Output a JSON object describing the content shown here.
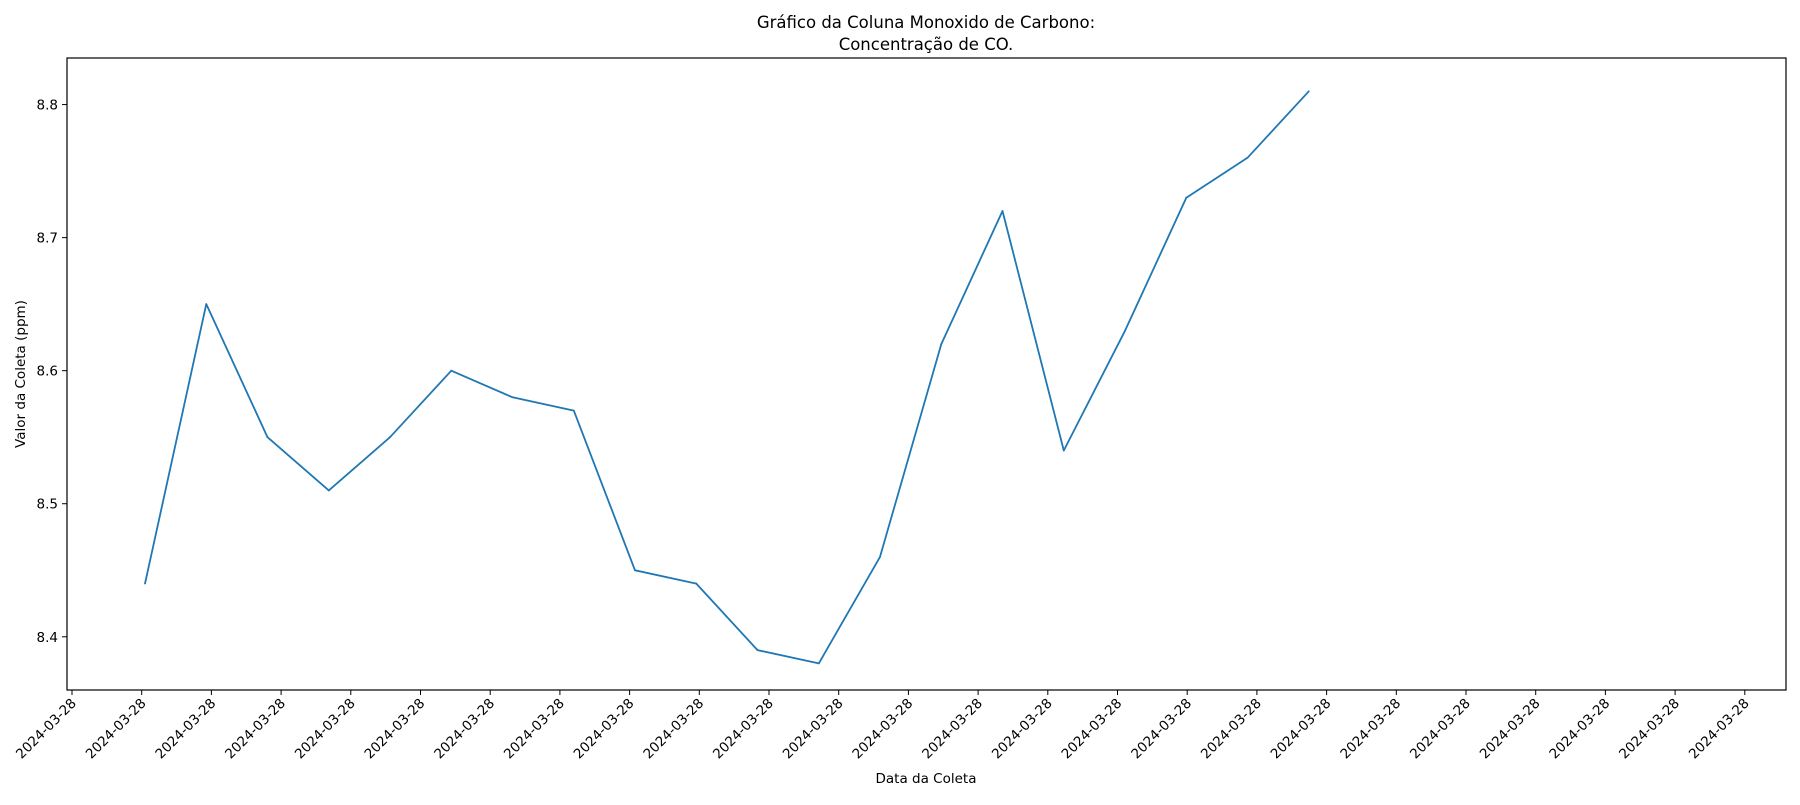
{
  "chart_data": {
    "type": "line",
    "title": [
      "Gráfico da Coluna Monoxido de Carbono:",
      "Concentração de CO."
    ],
    "xlabel": "Data da Coleta",
    "ylabel": "Valor da Coleta (ppm)",
    "x_tick_labels": [
      "2024-03-28",
      "2024-03-28",
      "2024-03-28",
      "2024-03-28",
      "2024-03-28",
      "2024-03-28",
      "2024-03-28",
      "2024-03-28",
      "2024-03-28",
      "2024-03-28",
      "2024-03-28",
      "2024-03-28",
      "2024-03-28",
      "2024-03-28",
      "2024-03-28",
      "2024-03-28",
      "2024-03-28",
      "2024-03-28",
      "2024-03-28",
      "2024-03-28",
      "2024-03-28",
      "2024-03-28",
      "2024-03-28",
      "2024-03-28",
      "2024-03-28"
    ],
    "y_ticks": [
      8.4,
      8.5,
      8.6,
      8.7,
      8.8
    ],
    "y_tick_labels": [
      "8.4",
      "8.5",
      "8.6",
      "8.7",
      "8.8"
    ],
    "ylim": [
      8.36,
      8.835
    ],
    "grid": false,
    "series": [
      {
        "color": "#1f77b4",
        "values": [
          8.44,
          8.65,
          8.55,
          8.51,
          8.55,
          8.6,
          8.58,
          8.57,
          8.45,
          8.44,
          8.39,
          8.38,
          8.46,
          8.62,
          8.72,
          8.54,
          8.63,
          8.73,
          8.76,
          8.81
        ]
      }
    ]
  }
}
